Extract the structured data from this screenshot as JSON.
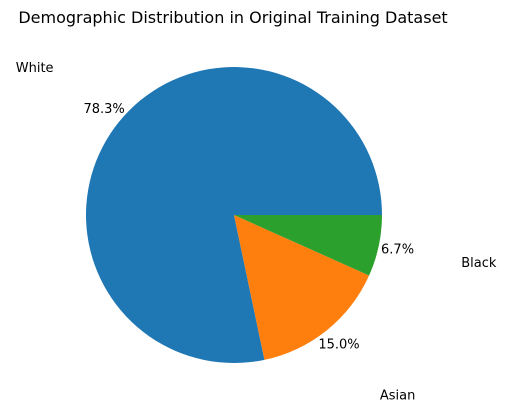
{
  "chart_data": {
    "type": "pie",
    "title": "Demographic Distribution in Original Training Dataset",
    "labels": [
      "White",
      "Asian",
      "Black"
    ],
    "values": [
      78.3,
      15.0,
      6.7
    ],
    "percent_labels": [
      "78.3%",
      "15.0%",
      "6.7%"
    ],
    "colors": [
      "#1f77b4",
      "#ff7f0e",
      "#2ca02c"
    ],
    "start_angle_deg": 0,
    "direction": "counterclockwise"
  }
}
